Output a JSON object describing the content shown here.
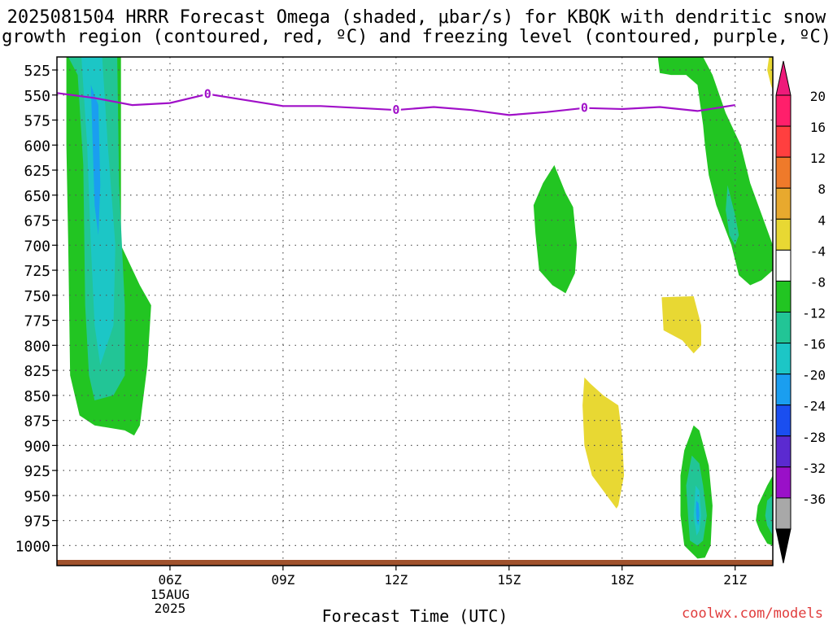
{
  "header": {
    "title_line1": "2025081504 HRRR Forecast Omega (shaded, μbar/s) for KBQK with dendritic snow",
    "title_line2": "growth region (contoured, red, ºC) and freezing level (contoured, purple, ºC)"
  },
  "footer": {
    "credit": "coolwx.com/models"
  },
  "chart_data": {
    "type": "heatmap",
    "title": "2025081504 HRRR Forecast Omega (shaded, μbar/s) for KBQK with dendritic snow growth region (contoured, red, ºC) and freezing level (contoured, purple, ºC)",
    "xlabel": "Forecast Time (UTC)",
    "ylabel": "",
    "x_range_hours": [
      3,
      22
    ],
    "y_range_hpa": [
      1020,
      512
    ],
    "y_ticks": [
      "525",
      "550",
      "575",
      "600",
      "625",
      "650",
      "675",
      "700",
      "725",
      "750",
      "775",
      "800",
      "825",
      "850",
      "875",
      "900",
      "925",
      "950",
      "975",
      "1000"
    ],
    "x_ticks": [
      {
        "hour": 6,
        "label": "06Z",
        "sub": [
          "15AUG",
          "2025"
        ]
      },
      {
        "hour": 9,
        "label": "09Z"
      },
      {
        "hour": 12,
        "label": "12Z"
      },
      {
        "hour": 15,
        "label": "15Z"
      },
      {
        "hour": 18,
        "label": "18Z"
      },
      {
        "hour": 21,
        "label": "21Z"
      }
    ],
    "grid": true,
    "colorbar": {
      "labels": [
        "20",
        "16",
        "12",
        "8",
        "4",
        "-4",
        "-8",
        "-12",
        "-16",
        "-20",
        "-24",
        "-28",
        "-32",
        "-36"
      ],
      "colors": [
        "#ff1f6b",
        "#ff3f3f",
        "#ef7a2a",
        "#e8a92e",
        "#e8d833",
        "#ffffff",
        "#22c522",
        "#22c596",
        "#1cc6c6",
        "#1a9ef0",
        "#1a4ef0",
        "#5b2ad0",
        "#9a10c8",
        "#a8a8a8"
      ],
      "arrow_top_color": "#ee1a7a",
      "arrow_bottom_color": "#000000"
    },
    "freezing_level": {
      "color": "#a010c8",
      "label": "0",
      "points": [
        [
          3,
          548
        ],
        [
          4,
          553
        ],
        [
          5,
          560
        ],
        [
          6,
          558
        ],
        [
          7,
          549
        ],
        [
          8,
          555
        ],
        [
          9,
          561
        ],
        [
          10,
          561
        ],
        [
          11,
          563
        ],
        [
          12,
          565
        ],
        [
          13,
          562
        ],
        [
          14,
          565
        ],
        [
          15,
          570
        ],
        [
          16,
          567
        ],
        [
          17,
          563
        ],
        [
          18,
          564
        ],
        [
          19,
          562
        ],
        [
          20,
          566
        ],
        [
          21,
          560
        ]
      ],
      "label_hours": [
        7,
        12,
        17
      ]
    },
    "surface_color": "#a0522d",
    "omega_regions": [
      {
        "value": -8,
        "polygon": [
          [
            3.25,
            512
          ],
          [
            4.7,
            512
          ],
          [
            4.7,
            700
          ],
          [
            5.2,
            740
          ],
          [
            5.5,
            760
          ],
          [
            5.4,
            820
          ],
          [
            5.2,
            880
          ],
          [
            5.05,
            890
          ],
          [
            4.8,
            885
          ],
          [
            4.0,
            880
          ],
          [
            3.6,
            870
          ],
          [
            3.35,
            830
          ],
          [
            3.3,
            700
          ],
          [
            3.25,
            600
          ]
        ]
      },
      {
        "value": -12,
        "polygon": [
          [
            3.3,
            512
          ],
          [
            4.6,
            512
          ],
          [
            4.65,
            640
          ],
          [
            4.8,
            760
          ],
          [
            4.8,
            830
          ],
          [
            4.5,
            850
          ],
          [
            4.0,
            855
          ],
          [
            3.85,
            830
          ],
          [
            3.75,
            760
          ],
          [
            3.7,
            620
          ],
          [
            3.55,
            530
          ]
        ]
      },
      {
        "value": -16,
        "polygon": [
          [
            3.65,
            512
          ],
          [
            4.2,
            512
          ],
          [
            4.35,
            600
          ],
          [
            4.55,
            700
          ],
          [
            4.5,
            780
          ],
          [
            4.15,
            820
          ],
          [
            4.0,
            780
          ],
          [
            3.9,
            700
          ],
          [
            3.8,
            600
          ]
        ]
      },
      {
        "value": -20,
        "polygon": [
          [
            3.9,
            540
          ],
          [
            4.1,
            560
          ],
          [
            4.15,
            640
          ],
          [
            4.1,
            690
          ],
          [
            4.0,
            660
          ],
          [
            3.95,
            600
          ]
        ]
      },
      {
        "value": -8,
        "polygon": [
          [
            15.9,
            638
          ],
          [
            16.2,
            620
          ],
          [
            16.5,
            648
          ],
          [
            16.7,
            662
          ],
          [
            16.8,
            700
          ],
          [
            16.75,
            728
          ],
          [
            16.5,
            748
          ],
          [
            16.15,
            740
          ],
          [
            15.8,
            725
          ],
          [
            15.7,
            688
          ],
          [
            15.65,
            660
          ]
        ]
      },
      {
        "value": -8,
        "polygon": [
          [
            18.95,
            512
          ],
          [
            20.15,
            512
          ],
          [
            20.4,
            530
          ],
          [
            20.75,
            568
          ],
          [
            21.15,
            600
          ],
          [
            21.4,
            638
          ],
          [
            22.0,
            700
          ],
          [
            22.0,
            725
          ],
          [
            21.7,
            735
          ],
          [
            21.4,
            740
          ],
          [
            21.1,
            730
          ],
          [
            20.9,
            700
          ],
          [
            20.5,
            660
          ],
          [
            20.3,
            630
          ],
          [
            20.2,
            600
          ],
          [
            20.15,
            580
          ],
          [
            20.0,
            540
          ],
          [
            19.7,
            530
          ],
          [
            19.3,
            530
          ],
          [
            19.0,
            528
          ]
        ]
      },
      {
        "value": -12,
        "polygon": [
          [
            20.8,
            640
          ],
          [
            21.0,
            670
          ],
          [
            21.1,
            690
          ],
          [
            21.0,
            700
          ],
          [
            20.85,
            690
          ],
          [
            20.75,
            665
          ]
        ]
      },
      {
        "value": 4,
        "polygon": [
          [
            21.9,
            512
          ],
          [
            22.0,
            512
          ],
          [
            22.0,
            545
          ],
          [
            21.95,
            540
          ],
          [
            21.85,
            525
          ]
        ]
      },
      {
        "value": 4,
        "polygon": [
          [
            19.05,
            752
          ],
          [
            19.9,
            751
          ],
          [
            20.1,
            780
          ],
          [
            20.1,
            800
          ],
          [
            19.9,
            808
          ],
          [
            19.6,
            795
          ],
          [
            19.1,
            785
          ]
        ]
      },
      {
        "value": 4,
        "polygon": [
          [
            17.0,
            832
          ],
          [
            17.15,
            838
          ],
          [
            17.5,
            850
          ],
          [
            17.9,
            860
          ],
          [
            18.0,
            890
          ],
          [
            18.05,
            930
          ],
          [
            17.9,
            960
          ],
          [
            17.85,
            963
          ],
          [
            17.2,
            930
          ],
          [
            17.0,
            900
          ],
          [
            16.95,
            860
          ]
        ]
      },
      {
        "value": -8,
        "polygon": [
          [
            19.65,
            905
          ],
          [
            19.9,
            880
          ],
          [
            20.05,
            885
          ],
          [
            20.3,
            920
          ],
          [
            20.4,
            960
          ],
          [
            20.35,
            1000
          ],
          [
            20.2,
            1012
          ],
          [
            20.0,
            1013
          ],
          [
            19.65,
            1000
          ],
          [
            19.55,
            970
          ],
          [
            19.55,
            930
          ]
        ]
      },
      {
        "value": -12,
        "polygon": [
          [
            19.85,
            910
          ],
          [
            20.05,
            918
          ],
          [
            20.15,
            940
          ],
          [
            20.25,
            970
          ],
          [
            20.15,
            995
          ],
          [
            20.0,
            1000
          ],
          [
            19.8,
            995
          ],
          [
            19.75,
            970
          ],
          [
            19.7,
            940
          ]
        ]
      },
      {
        "value": -16,
        "polygon": [
          [
            19.95,
            940
          ],
          [
            20.05,
            945
          ],
          [
            20.1,
            970
          ],
          [
            20.05,
            985
          ],
          [
            19.98,
            990
          ],
          [
            19.9,
            970
          ]
        ]
      },
      {
        "value": -20,
        "polygon": [
          [
            19.97,
            955
          ],
          [
            20.03,
            958
          ],
          [
            20.05,
            970
          ],
          [
            20.02,
            980
          ],
          [
            19.98,
            975
          ],
          [
            19.96,
            965
          ]
        ]
      },
      {
        "value": -8,
        "polygon": [
          [
            21.6,
            960
          ],
          [
            21.85,
            940
          ],
          [
            22.0,
            930
          ],
          [
            22.0,
            1000
          ],
          [
            21.85,
            998
          ],
          [
            21.65,
            985
          ],
          [
            21.55,
            975
          ]
        ]
      },
      {
        "value": -12,
        "polygon": [
          [
            21.85,
            955
          ],
          [
            22.0,
            950
          ],
          [
            22.0,
            990
          ],
          [
            21.85,
            980
          ],
          [
            21.8,
            970
          ]
        ]
      }
    ]
  }
}
